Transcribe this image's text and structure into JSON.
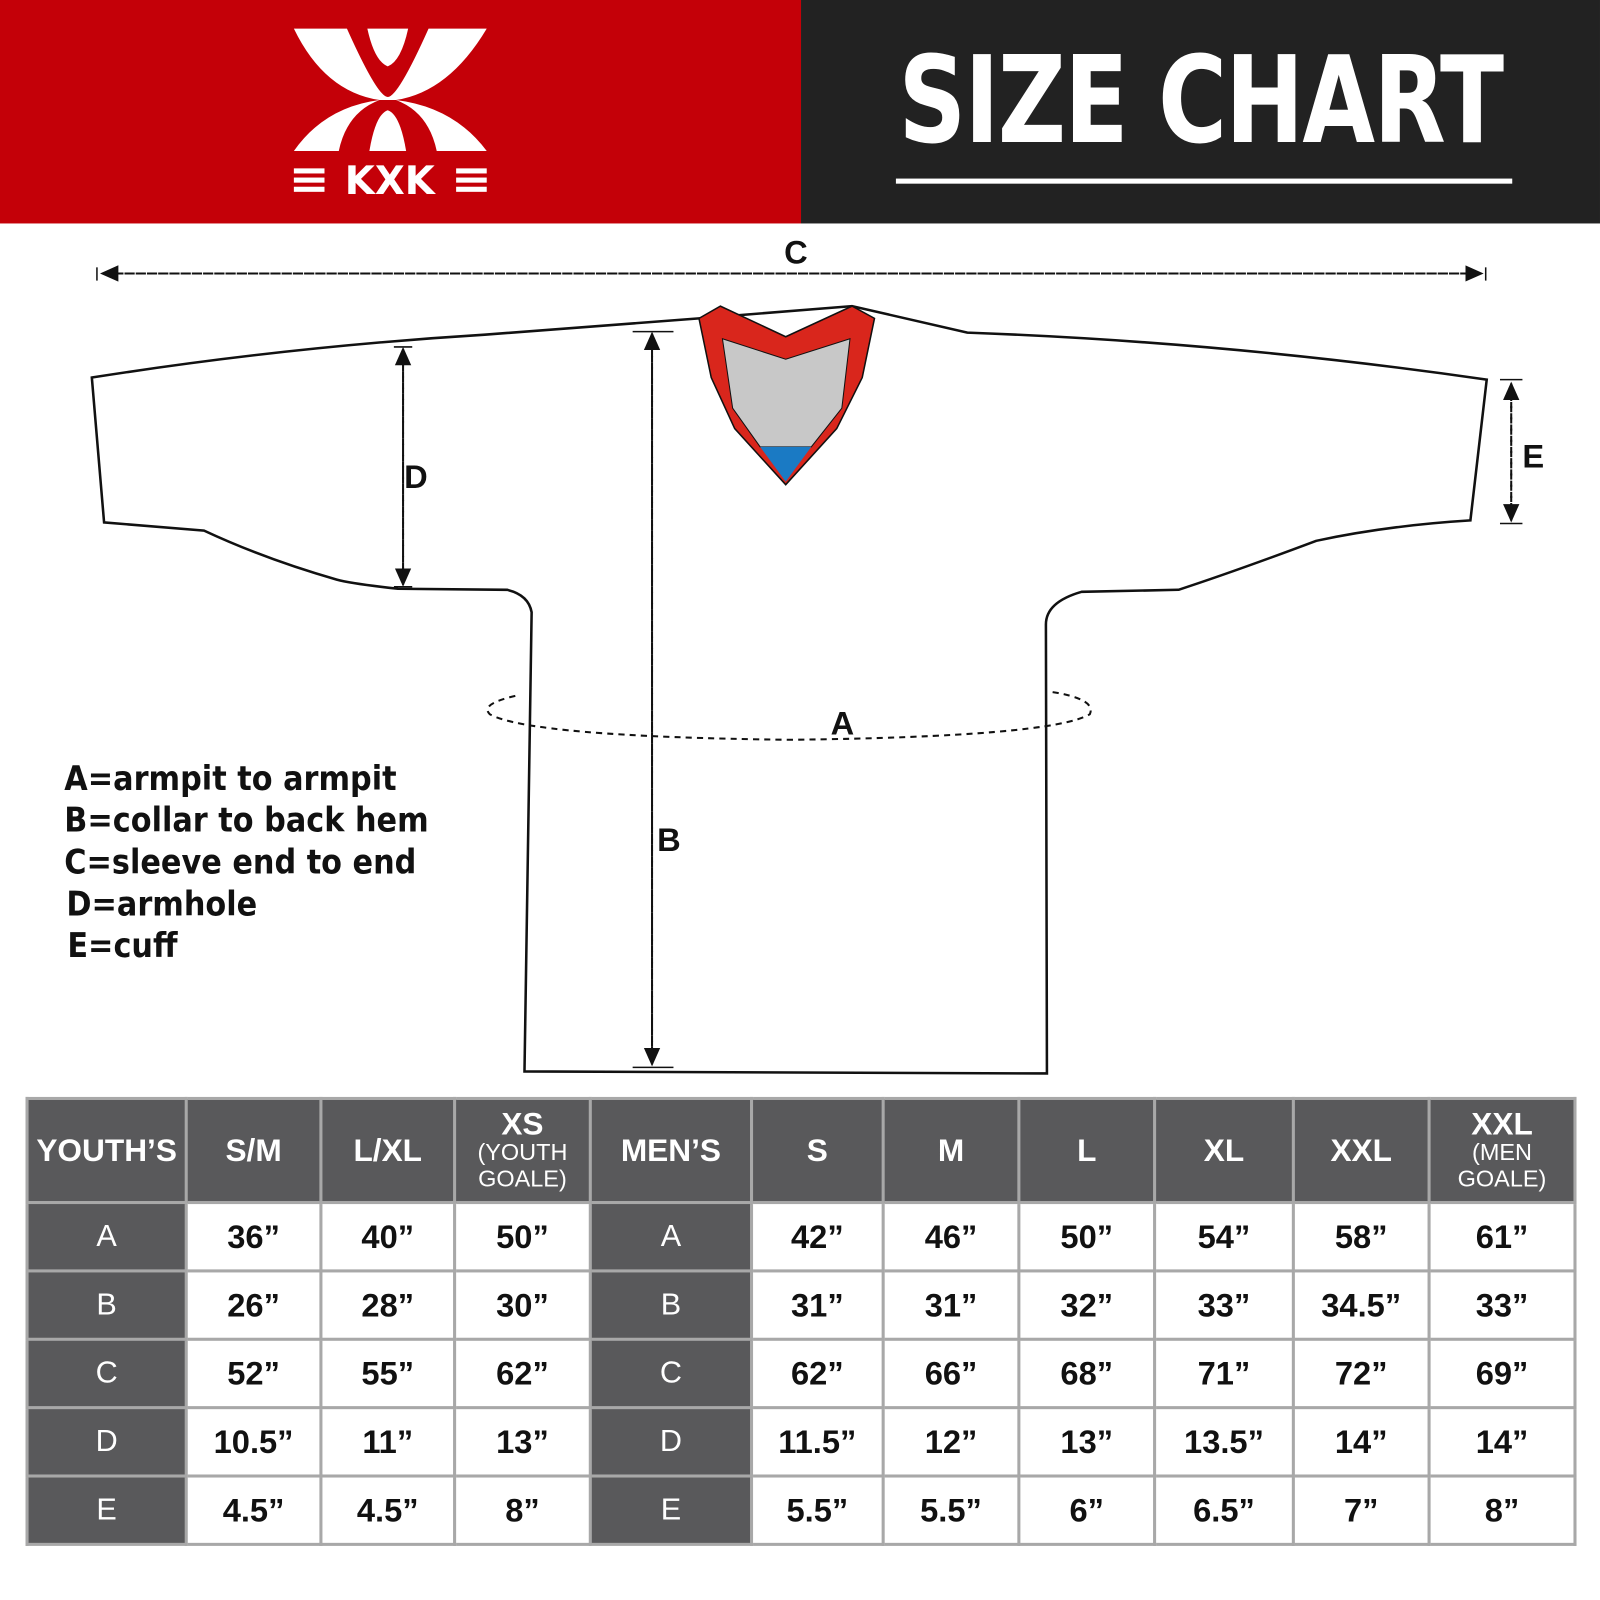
{
  "brand": {
    "logo_text": "KXK",
    "color": "#c40008"
  },
  "header": {
    "title": "SIZE CHART",
    "dark_color": "#222222"
  },
  "diagram": {
    "labels": {
      "A": "A",
      "B": "B",
      "C": "C",
      "D": "D",
      "E": "E"
    },
    "collar_colors": {
      "trim": "#d9261c",
      "inner": "#c8c8c8",
      "accent": "#1a7ac4"
    }
  },
  "legend": [
    "A=armpit to armpit",
    "B=collar to back hem",
    "C=sleeve end to end",
    "D=armhole",
    "E=cuff"
  ],
  "table": {
    "youth_header": "YOUTH’S",
    "youth_sizes": [
      {
        "label": "S/M"
      },
      {
        "label": "L/XL"
      },
      {
        "label": "XS",
        "note": "(YOUTH GOALE)"
      }
    ],
    "men_header": "MEN’S",
    "men_sizes": [
      {
        "label": "S"
      },
      {
        "label": "M"
      },
      {
        "label": "L"
      },
      {
        "label": "XL"
      },
      {
        "label": "XXL"
      },
      {
        "label": "XXL",
        "note": "(MEN GOALE)"
      }
    ],
    "rows": [
      {
        "key": "A",
        "youth": [
          "36”",
          "40”",
          "50”"
        ],
        "men": [
          "42”",
          "46”",
          "50”",
          "54”",
          "58”",
          "61”"
        ]
      },
      {
        "key": "B",
        "youth": [
          "26”",
          "28”",
          "30”"
        ],
        "men": [
          "31”",
          "31”",
          "32”",
          "33”",
          "34.5”",
          "33”"
        ]
      },
      {
        "key": "C",
        "youth": [
          "52”",
          "55”",
          "62”"
        ],
        "men": [
          "62”",
          "66”",
          "68”",
          "71”",
          "72”",
          "69”"
        ]
      },
      {
        "key": "D",
        "youth": [
          "10.5”",
          "11”",
          "13”"
        ],
        "men": [
          "11.5”",
          "12”",
          "13”",
          "13.5”",
          "14”",
          "14”"
        ]
      },
      {
        "key": "E",
        "youth": [
          "4.5”",
          "4.5”",
          "8”"
        ],
        "men": [
          "5.5”",
          "5.5”",
          "6”",
          "6.5”",
          "7”",
          "8”"
        ]
      }
    ]
  }
}
